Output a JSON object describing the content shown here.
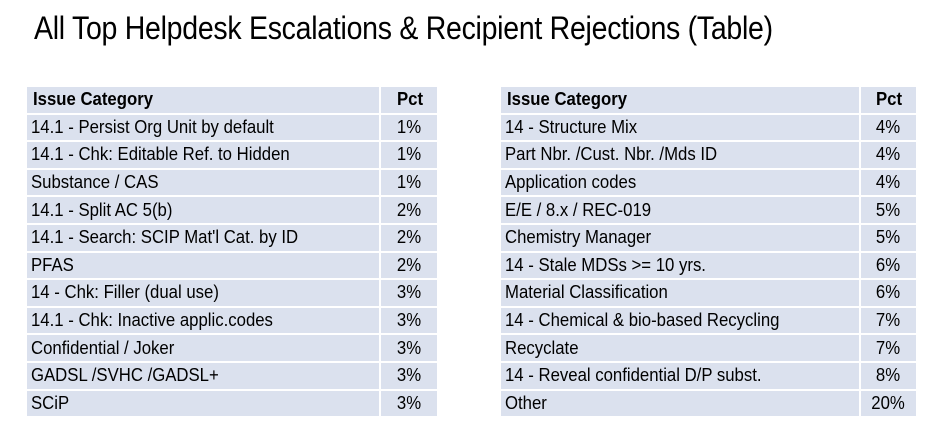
{
  "title": "All Top Helpdesk Escalations & Recipient Rejections (Table)",
  "colors": {
    "row_background": "#dbe1ee",
    "separator": "#ffffff",
    "text": "#000000"
  },
  "left_table": {
    "headers": {
      "category": "Issue Category",
      "pct": "Pct"
    },
    "rows": [
      {
        "category": "14.1 - Persist Org Unit by default",
        "pct": "1%"
      },
      {
        "category": "14.1 - Chk: Editable Ref. to Hidden",
        "pct": "1%"
      },
      {
        "category": "Substance / CAS",
        "pct": "1%"
      },
      {
        "category": "14.1 - Split AC 5(b)",
        "pct": "2%"
      },
      {
        "category": "14.1 - Search: SCIP Mat'l Cat. by ID",
        "pct": "2%"
      },
      {
        "category": "PFAS",
        "pct": "2%"
      },
      {
        "category": "14 - Chk: Filler (dual use)",
        "pct": "3%"
      },
      {
        "category": "14.1 - Chk: Inactive applic.codes",
        "pct": "3%"
      },
      {
        "category": "Confidential / Joker",
        "pct": "3%"
      },
      {
        "category": "GADSL /SVHC /GADSL+",
        "pct": "3%"
      },
      {
        "category": "SCiP",
        "pct": "3%"
      }
    ]
  },
  "right_table": {
    "headers": {
      "category": "Issue Category",
      "pct": "Pct"
    },
    "rows": [
      {
        "category": "14 - Structure Mix",
        "pct": "4%"
      },
      {
        "category": "Part Nbr. /Cust. Nbr. /Mds ID",
        "pct": "4%"
      },
      {
        "category": "Application codes",
        "pct": "4%"
      },
      {
        "category": "E/E / 8.x / REC-019",
        "pct": "5%"
      },
      {
        "category": "Chemistry Manager",
        "pct": "5%"
      },
      {
        "category": "14 - Stale MDSs >= 10 yrs.",
        "pct": "6%"
      },
      {
        "category": "Material Classification",
        "pct": "6%"
      },
      {
        "category": "14 - Chemical & bio-based Recycling",
        "pct": "7%"
      },
      {
        "category": "Recyclate",
        "pct": "7%"
      },
      {
        "category": "14 - Reveal confidential D/P subst.",
        "pct": "8%"
      },
      {
        "category": "Other",
        "pct": "20%"
      }
    ]
  }
}
